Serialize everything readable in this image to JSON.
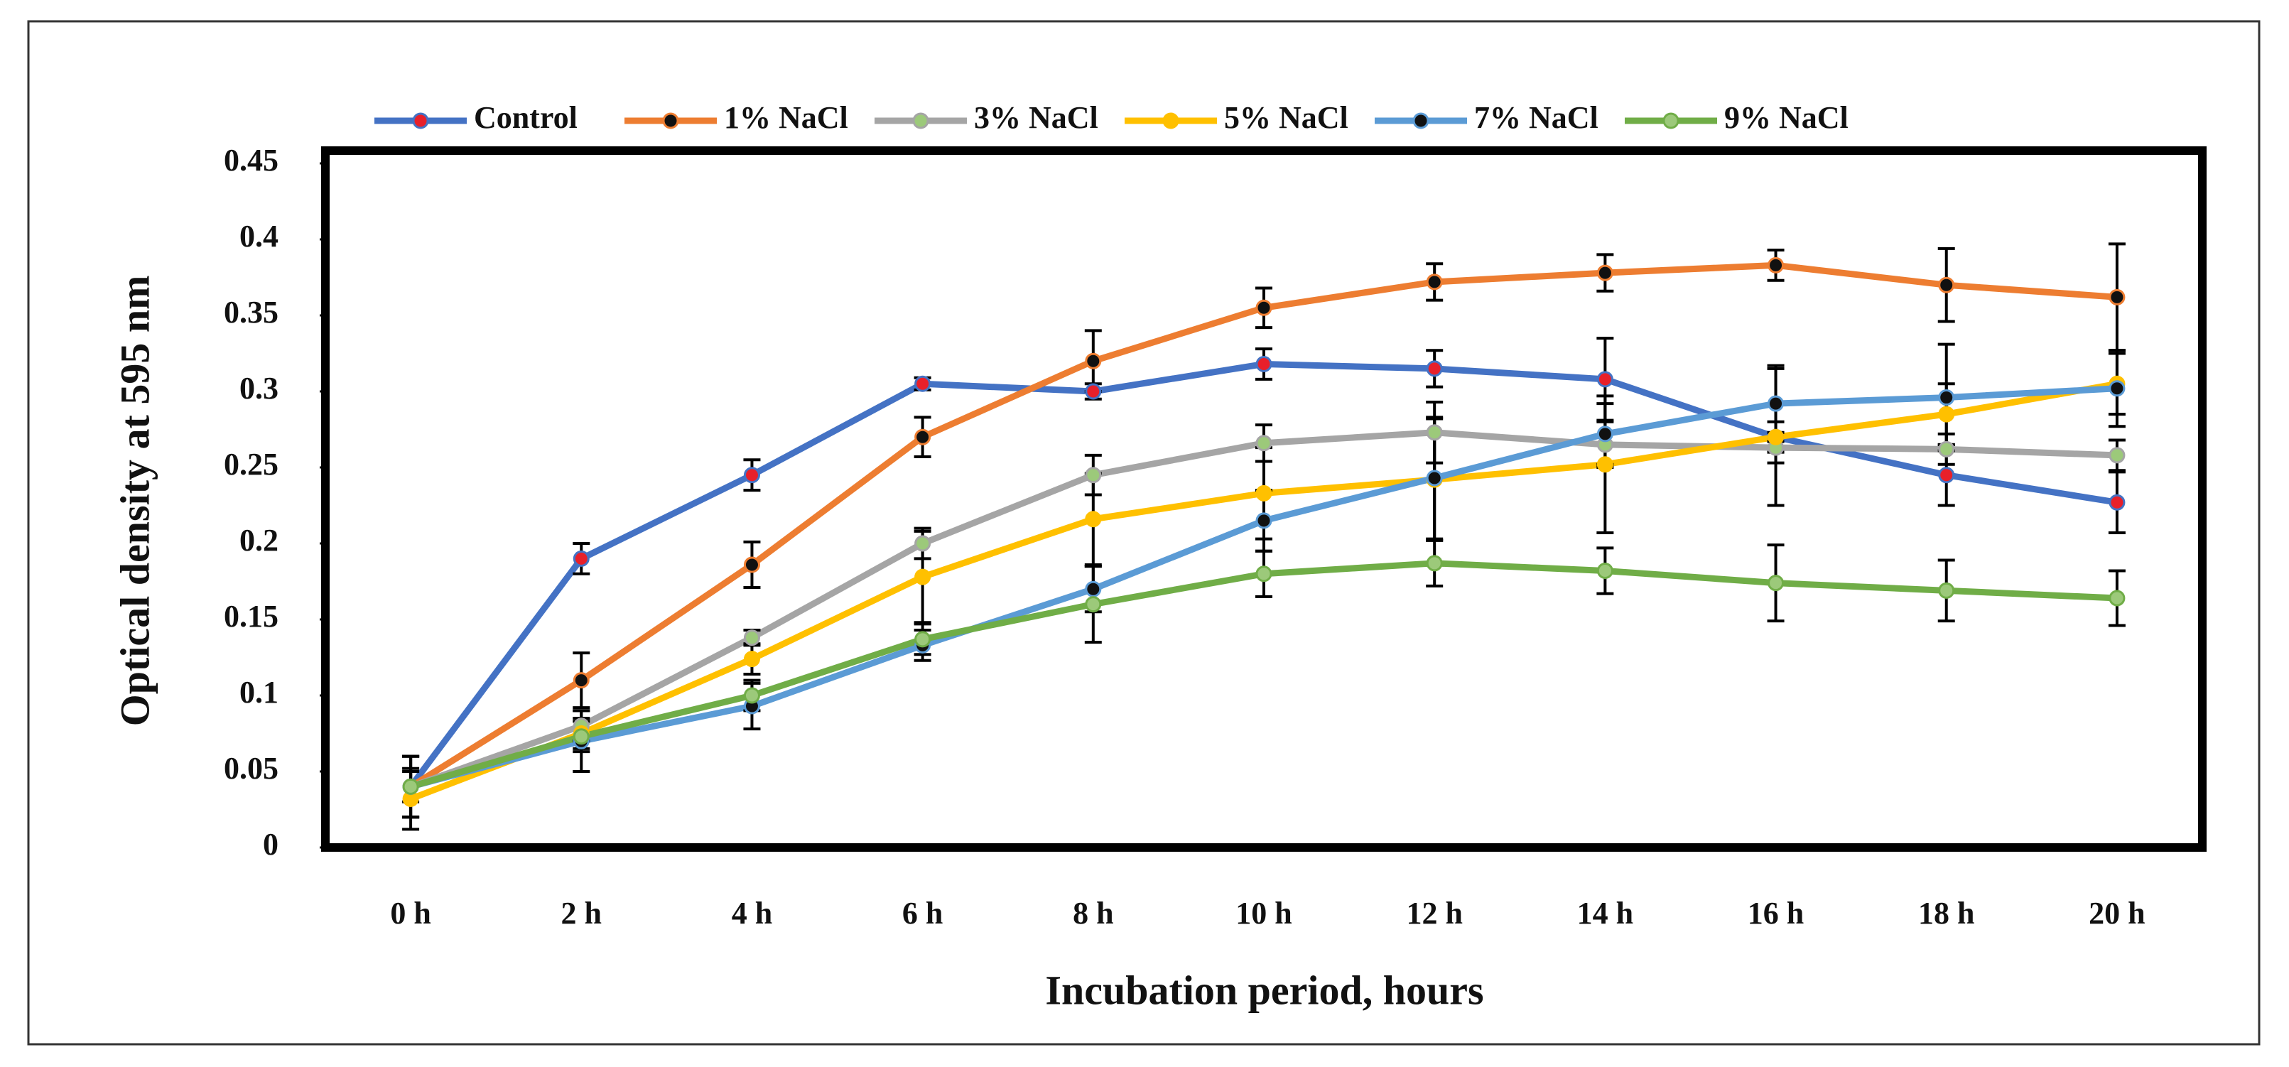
{
  "chart_data": {
    "type": "line",
    "x_label": "Incubation period, hours",
    "y_label": "Optical density at 595 nm",
    "categories": [
      "0 h",
      "2 h",
      "4 h",
      "6 h",
      "8 h",
      "10 h",
      "12 h",
      "14 h",
      "16 h",
      "18 h",
      "20 h"
    ],
    "ylim": [
      0,
      0.45
    ],
    "yticks": [
      0,
      0.05,
      0.1,
      0.15,
      0.2,
      0.25,
      0.3,
      0.35,
      0.4,
      0.45
    ],
    "legend": "top",
    "series": [
      {
        "name": "Control",
        "color": "#4472c4",
        "marker_color": "#e8202a",
        "values": [
          0.04,
          0.19,
          0.245,
          0.305,
          0.3,
          0.318,
          0.315,
          0.308,
          0.27,
          0.245,
          0.227
        ],
        "errors": [
          0.02,
          0.01,
          0.01,
          0.004,
          0.005,
          0.01,
          0.012,
          0.027,
          0.01,
          0.02,
          0.02
        ]
      },
      {
        "name": "1% NaCl",
        "color": "#ed7d31",
        "marker_color": "#111111",
        "values": [
          0.04,
          0.11,
          0.186,
          0.27,
          0.32,
          0.355,
          0.372,
          0.378,
          0.383,
          0.37,
          0.362
        ],
        "errors": [
          0.02,
          0.018,
          0.015,
          0.013,
          0.02,
          0.013,
          0.012,
          0.012,
          0.01,
          0.024,
          0.035
        ]
      },
      {
        "name": "3% NaCl",
        "color": "#a5a5a5",
        "marker_color": "#9cc97a",
        "values": [
          0.04,
          0.08,
          0.138,
          0.2,
          0.245,
          0.266,
          0.273,
          0.265,
          0.263,
          0.262,
          0.258
        ],
        "errors": [
          0.02,
          0.01,
          0.005,
          0.01,
          0.013,
          0.012,
          0.02,
          0.015,
          0.01,
          0.01,
          0.01
        ]
      },
      {
        "name": "5% NaCl",
        "color": "#ffc000",
        "marker_color": "#ffc000",
        "values": [
          0.032,
          0.075,
          0.124,
          0.178,
          0.216,
          0.233,
          0.242,
          0.252,
          0.27,
          0.285,
          0.305
        ],
        "errors": [
          0.02,
          0.01,
          0.01,
          0.03,
          0.03,
          0.03,
          0.04,
          0.045,
          0.045,
          0.02,
          0.02
        ]
      },
      {
        "name": "7% NaCl",
        "color": "#5b9bd5",
        "marker_color": "#111111",
        "values": [
          0.04,
          0.07,
          0.093,
          0.133,
          0.17,
          0.215,
          0.243,
          0.272,
          0.292,
          0.296,
          0.302
        ],
        "errors": [
          0.02,
          0.02,
          0.015,
          0.01,
          0.015,
          0.02,
          0.04,
          0.02,
          0.025,
          0.035,
          0.025
        ]
      },
      {
        "name": "9% NaCl",
        "color": "#70ad47",
        "marker_color": "#9cc97a",
        "values": [
          0.04,
          0.073,
          0.1,
          0.137,
          0.16,
          0.18,
          0.187,
          0.182,
          0.174,
          0.169,
          0.164
        ],
        "errors": [
          0.01,
          0.01,
          0.01,
          0.01,
          0.025,
          0.015,
          0.015,
          0.015,
          0.025,
          0.02,
          0.018
        ]
      }
    ]
  }
}
